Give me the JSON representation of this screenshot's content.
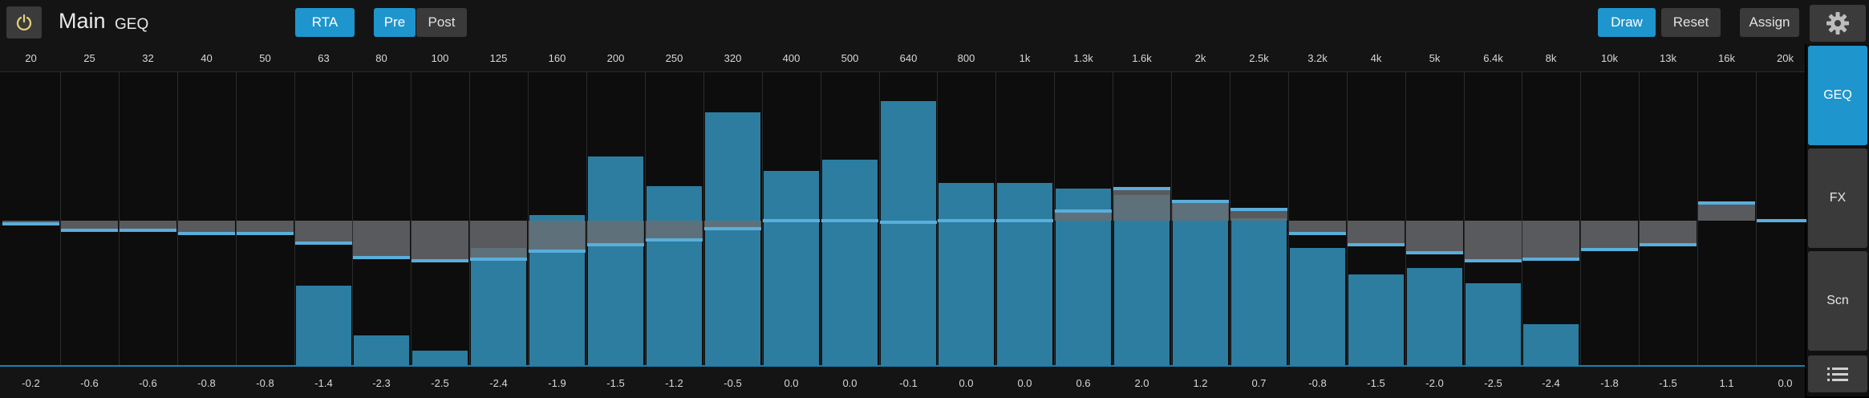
{
  "header": {
    "title": "Main",
    "subtitle": "GEQ",
    "rta_label": "RTA",
    "pre_label": "Pre",
    "post_label": "Post",
    "draw_label": "Draw",
    "reset_label": "Reset",
    "assign_label": "Assign"
  },
  "sidebar": {
    "geq_label": "GEQ",
    "fx_label": "FX",
    "scn_label": "Scn"
  },
  "bands": [
    {
      "freq": "20",
      "gain": "-0.2"
    },
    {
      "freq": "25",
      "gain": "-0.6"
    },
    {
      "freq": "32",
      "gain": "-0.6"
    },
    {
      "freq": "40",
      "gain": "-0.8"
    },
    {
      "freq": "50",
      "gain": "-0.8"
    },
    {
      "freq": "63",
      "gain": "-1.4"
    },
    {
      "freq": "80",
      "gain": "-2.3"
    },
    {
      "freq": "100",
      "gain": "-2.5"
    },
    {
      "freq": "125",
      "gain": "-2.4"
    },
    {
      "freq": "160",
      "gain": "-1.9"
    },
    {
      "freq": "200",
      "gain": "-1.5"
    },
    {
      "freq": "250",
      "gain": "-1.2"
    },
    {
      "freq": "320",
      "gain": "-0.5"
    },
    {
      "freq": "400",
      "gain": "0.0"
    },
    {
      "freq": "500",
      "gain": "0.0"
    },
    {
      "freq": "640",
      "gain": "-0.1"
    },
    {
      "freq": "800",
      "gain": "0.0"
    },
    {
      "freq": "1k",
      "gain": "0.0"
    },
    {
      "freq": "1.3k",
      "gain": "0.6"
    },
    {
      "freq": "1.6k",
      "gain": "2.0"
    },
    {
      "freq": "2k",
      "gain": "1.2"
    },
    {
      "freq": "2.5k",
      "gain": "0.7"
    },
    {
      "freq": "3.2k",
      "gain": "-0.8"
    },
    {
      "freq": "4k",
      "gain": "-1.5"
    },
    {
      "freq": "5k",
      "gain": "-2.0"
    },
    {
      "freq": "6.4k",
      "gain": "-2.5"
    },
    {
      "freq": "8k",
      "gain": "-2.4"
    },
    {
      "freq": "10k",
      "gain": "-1.8"
    },
    {
      "freq": "13k",
      "gain": "-1.5"
    },
    {
      "freq": "16k",
      "gain": "1.1"
    },
    {
      "freq": "20k",
      "gain": "0.0"
    }
  ],
  "rta_levels": [
    0,
    0,
    0,
    0,
    0,
    0.27,
    0.1,
    0.05,
    0.4,
    0.51,
    0.71,
    0.61,
    0.86,
    0.66,
    0.7,
    0.9,
    0.62,
    0.62,
    0.6,
    0.58,
    0.56,
    0.5,
    0.4,
    0.31,
    0.33,
    0.28,
    0.14,
    0,
    0,
    0,
    0
  ],
  "colors": {
    "accent": "#1e95cc",
    "rta_bar": "#2f87ad",
    "gain_fill": "#6b6e72",
    "gain_line": "#5aaedb",
    "background": "#0d0d0d"
  },
  "icons": {
    "power": "power-icon",
    "gear": "gear-icon",
    "menu": "menu-icon"
  }
}
